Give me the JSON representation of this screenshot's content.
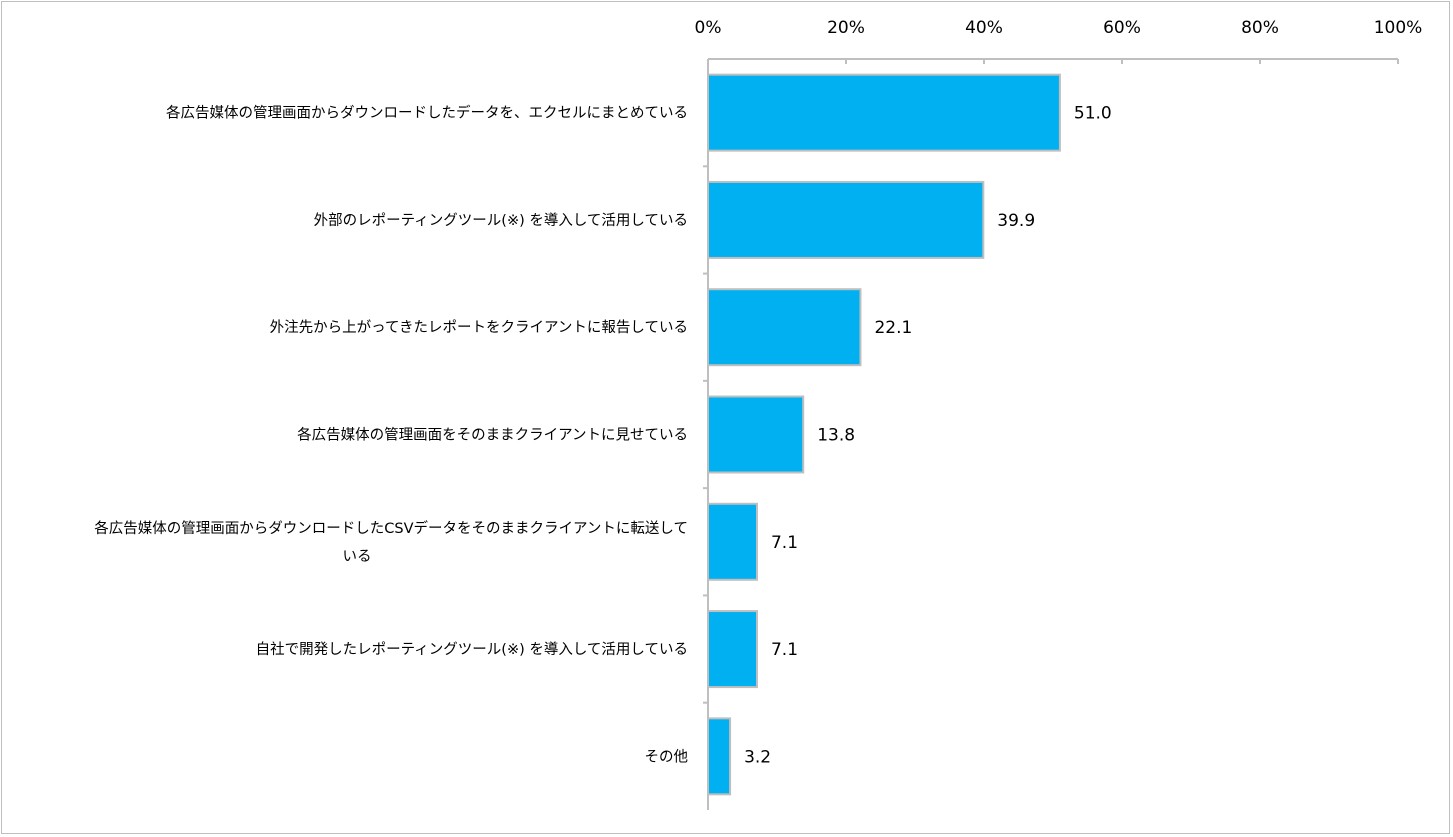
{
  "chart_data": {
    "type": "bar",
    "orientation": "horizontal",
    "title": "",
    "xlabel": "",
    "ylabel": "",
    "xlim": [
      0,
      100
    ],
    "x_ticks": [
      "0%",
      "20%",
      "40%",
      "60%",
      "80%",
      "100%"
    ],
    "x_tick_values": [
      0,
      20,
      40,
      60,
      80,
      100
    ],
    "grid": false,
    "categories": [
      [
        "各広告媒体の管理画面からダウンロードしたデータを、エクセルにまとめている"
      ],
      [
        "外部のレポーティングツール(※) を導入して活用している"
      ],
      [
        "外注先から上がってきたレポートをクライアントに報告している"
      ],
      [
        "各広告媒体の管理画面をそのままクライアントに見せている"
      ],
      [
        "各広告媒体の管理画面からダウンロードしたCSVデータをそのままクライアントに転送して",
        "いる"
      ],
      [
        "自社で開発したレポーティングツール(※) を導入して活用している"
      ],
      [
        "その他"
      ]
    ],
    "values": [
      51.0,
      39.9,
      22.1,
      13.8,
      7.1,
      7.1,
      3.2
    ],
    "value_labels": [
      "51.0",
      "39.9",
      "22.1",
      "13.8",
      "7.1",
      "7.1",
      "3.2"
    ],
    "bar_color": "#00B0F0",
    "bar_border_color": "#BFBFBF",
    "axis_color": "#BFBFBF"
  }
}
